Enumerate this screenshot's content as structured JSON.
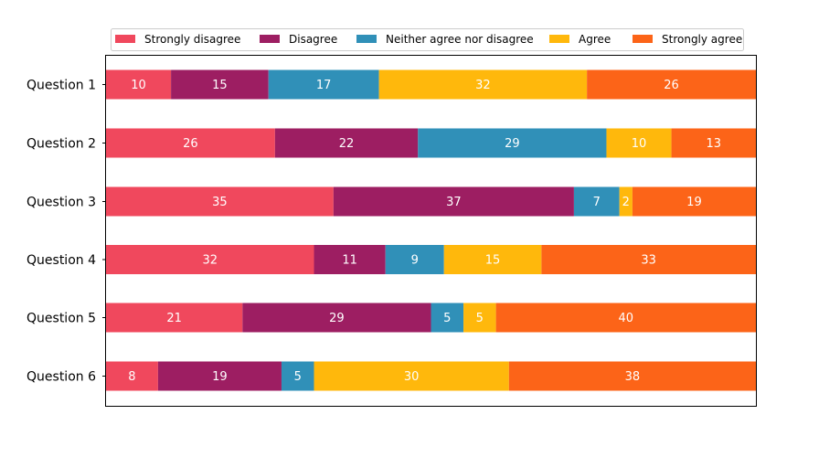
{
  "chart_data": {
    "type": "bar",
    "orientation": "horizontal",
    "stacked": true,
    "title": "",
    "xlabel": "",
    "ylabel": "",
    "grid": false,
    "legend_position": "top",
    "xlim": [
      0,
      100
    ],
    "categories": [
      "Question 1",
      "Question 2",
      "Question 3",
      "Question 4",
      "Question 5",
      "Question 6"
    ],
    "series": [
      {
        "name": "Strongly disagree",
        "color": "#f0485d",
        "values": [
          10,
          26,
          35,
          32,
          21,
          8
        ]
      },
      {
        "name": "Disagree",
        "color": "#9d1e62",
        "values": [
          15,
          22,
          37,
          11,
          29,
          19
        ]
      },
      {
        "name": "Neither agree nor disagree",
        "color": "#3090b8",
        "values": [
          17,
          29,
          7,
          9,
          5,
          5
        ]
      },
      {
        "name": "Agree",
        "color": "#ffb80c",
        "values": [
          32,
          10,
          2,
          15,
          5,
          30
        ]
      },
      {
        "name": "Strongly agree",
        "color": "#fc6418",
        "values": [
          26,
          13,
          19,
          33,
          40,
          38
        ]
      }
    ]
  }
}
